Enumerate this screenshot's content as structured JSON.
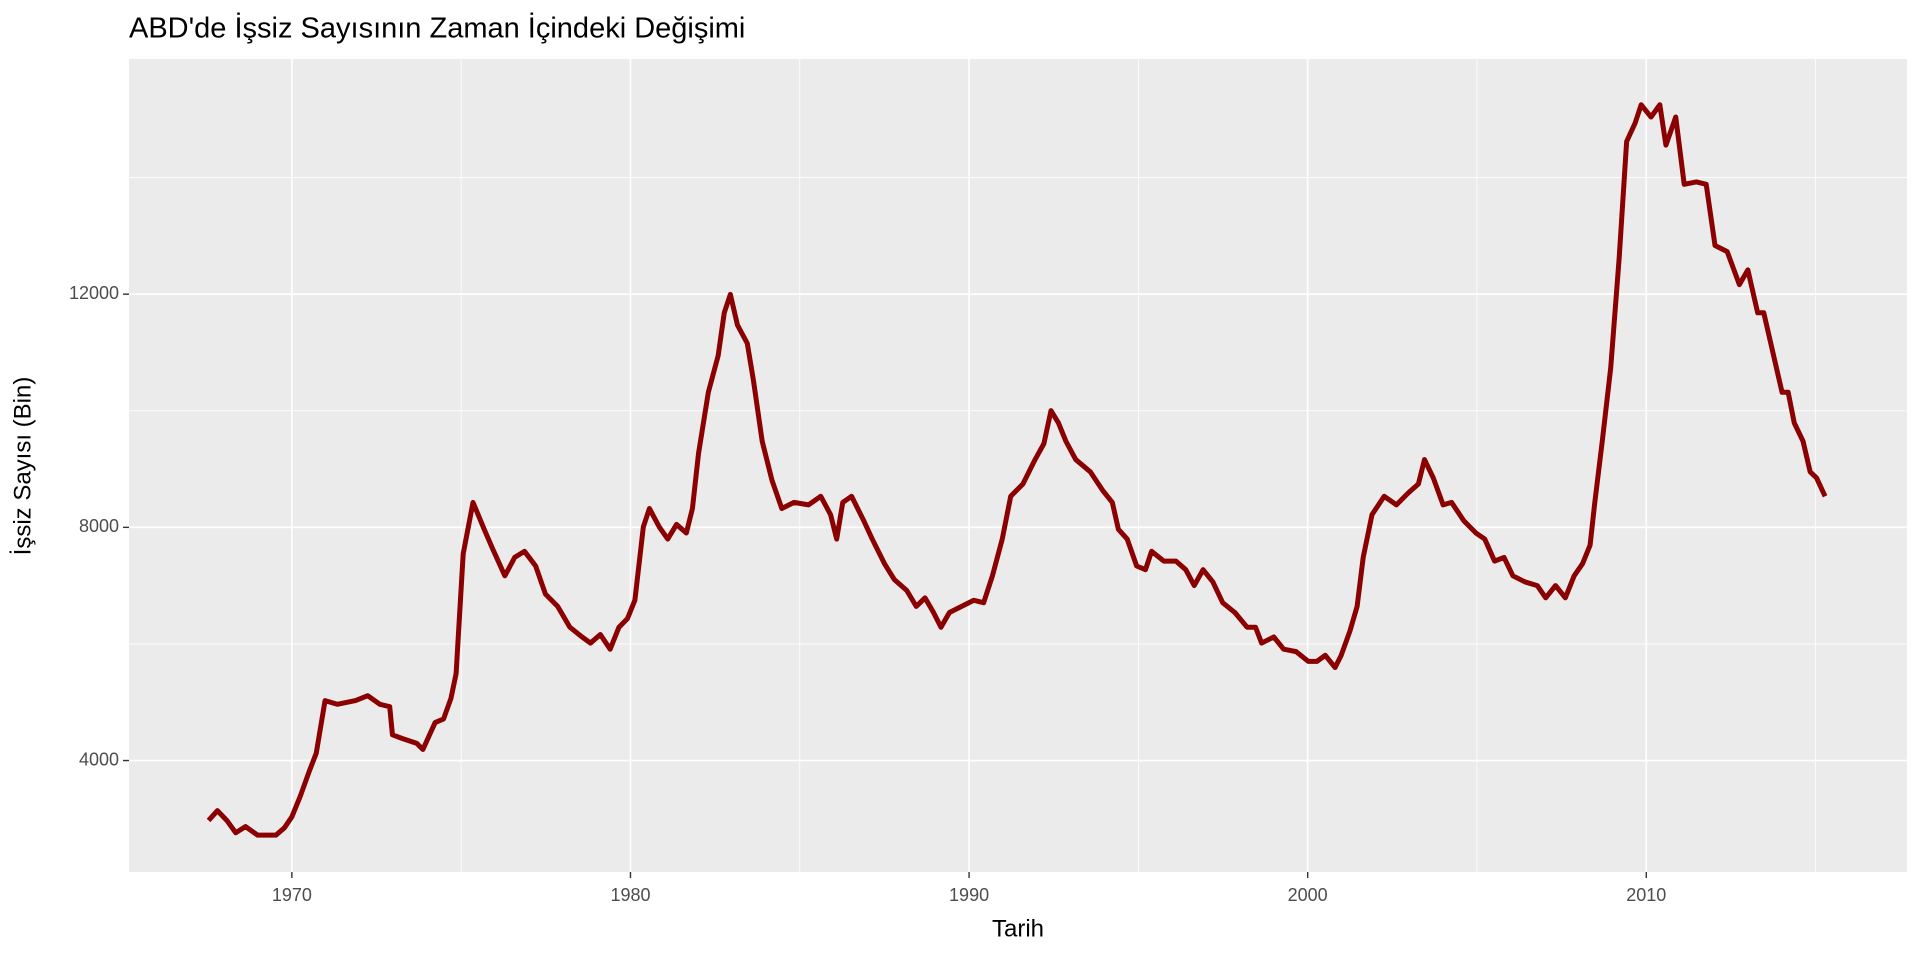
{
  "chart_data": {
    "type": "line",
    "title": "ABD'de İşsiz Sayısının Zaman İçindeki Değişimi",
    "x_label": "Tarih",
    "y_label": "İşsiz Sayısı (Bin)",
    "color": "#8b0000",
    "grid": true,
    "xlim": [
      1965.19,
      2017.7
    ],
    "ylim": [
      2088,
      16034
    ],
    "xticks": [
      1970,
      1980,
      1990,
      2000,
      2010
    ],
    "yticks": [
      4000,
      8000,
      12000
    ],
    "xminor": [
      1965,
      1975,
      1985,
      1995,
      2005,
      2015
    ],
    "yminor": [
      6000,
      10000,
      14000
    ],
    "x": [
      1967.54,
      1967.8,
      1968.08,
      1968.34,
      1968.63,
      1968.99,
      1969.53,
      1969.78,
      1970.0,
      1970.25,
      1970.51,
      1970.72,
      1970.98,
      1971.34,
      1971.88,
      1972.24,
      1972.6,
      1972.89,
      1972.97,
      1973.26,
      1973.69,
      1973.87,
      1974.23,
      1974.48,
      1974.7,
      1974.85,
      1975.06,
      1975.35,
      1975.68,
      1975.93,
      1976.29,
      1976.58,
      1976.87,
      1977.2,
      1977.49,
      1977.85,
      1978.21,
      1978.57,
      1978.82,
      1979.11,
      1979.4,
      1979.66,
      1979.91,
      1980.13,
      1980.38,
      1980.56,
      1980.85,
      1981.1,
      1981.36,
      1981.65,
      1981.83,
      1982.01,
      1982.3,
      1982.59,
      1982.77,
      1982.95,
      1983.16,
      1983.45,
      1983.63,
      1983.89,
      1984.18,
      1984.47,
      1984.83,
      1985.26,
      1985.62,
      1985.91,
      1986.09,
      1986.27,
      1986.53,
      1986.89,
      1987.14,
      1987.5,
      1987.79,
      1988.16,
      1988.44,
      1988.7,
      1988.95,
      1989.17,
      1989.42,
      1989.78,
      1990.14,
      1990.43,
      1990.69,
      1990.98,
      1991.23,
      1991.59,
      1991.95,
      1992.21,
      1992.42,
      1992.64,
      1992.86,
      1993.15,
      1993.58,
      1993.94,
      1994.23,
      1994.41,
      1994.67,
      1994.95,
      1995.21,
      1995.39,
      1995.75,
      1996.11,
      1996.4,
      1996.65,
      1996.91,
      1997.2,
      1997.49,
      1997.85,
      1998.21,
      1998.46,
      1998.64,
      1999.0,
      1999.29,
      1999.66,
      2000.02,
      2000.27,
      2000.52,
      2000.81,
      2000.99,
      2001.25,
      2001.46,
      2001.64,
      2001.9,
      2002.26,
      2002.62,
      2002.98,
      2003.27,
      2003.45,
      2003.71,
      2004.0,
      2004.25,
      2004.61,
      2004.97,
      2005.23,
      2005.52,
      2005.8,
      2006.06,
      2006.42,
      2006.78,
      2007.03,
      2007.32,
      2007.61,
      2007.87,
      2008.12,
      2008.34,
      2008.48,
      2008.7,
      2008.95,
      2009.2,
      2009.42,
      2009.67,
      2009.85,
      2010.14,
      2010.4,
      2010.58,
      2010.87,
      2011.12,
      2011.48,
      2011.77,
      2012.03,
      2012.39,
      2012.75,
      2013.0,
      2013.29,
      2013.47,
      2013.76,
      2014.01,
      2014.19,
      2014.37,
      2014.63,
      2014.84,
      2015.03,
      2015.28
    ],
    "values": [
      2972,
      3140,
      2972,
      2762,
      2867,
      2720,
      2720,
      2846,
      3035,
      3391,
      3811,
      4126,
      5028,
      4965,
      5028,
      5112,
      4965,
      4923,
      4441,
      4378,
      4294,
      4189,
      4651,
      4714,
      5070,
      5490,
      7547,
      8428,
      7967,
      7631,
      7169,
      7484,
      7589,
      7337,
      6854,
      6644,
      6287,
      6120,
      6015,
      6162,
      5910,
      6287,
      6434,
      6749,
      8008,
      8323,
      8008,
      7799,
      8050,
      7903,
      8323,
      9268,
      10317,
      10946,
      11681,
      11996,
      11471,
      11156,
      10527,
      9477,
      8806,
      8323,
      8428,
      8386,
      8533,
      8218,
      7799,
      8428,
      8533,
      8113,
      7799,
      7379,
      7106,
      6917,
      6644,
      6791,
      6539,
      6287,
      6539,
      6644,
      6749,
      6707,
      7169,
      7799,
      8533,
      8743,
      9163,
      9436,
      10002,
      9792,
      9477,
      9163,
      8953,
      8638,
      8428,
      7967,
      7799,
      7337,
      7274,
      7589,
      7421,
      7421,
      7274,
      7001,
      7274,
      7064,
      6707,
      6539,
      6287,
      6287,
      6015,
      6120,
      5910,
      5868,
      5700,
      5700,
      5805,
      5595,
      5805,
      6225,
      6644,
      7484,
      8218,
      8533,
      8386,
      8596,
      8743,
      9163,
      8848,
      8386,
      8428,
      8113,
      7903,
      7799,
      7421,
      7484,
      7169,
      7064,
      7001,
      6791,
      7001,
      6791,
      7169,
      7379,
      7694,
      8428,
      9477,
      10737,
      12626,
      14619,
      14934,
      15249,
      15039,
      15249,
      14556,
      15039,
      13884,
      13926,
      13884,
      12835,
      12730,
      12164,
      12416,
      11681,
      11681,
      10946,
      10317,
      10317,
      9792,
      9477,
      8953,
      8848,
      8533
    ]
  }
}
